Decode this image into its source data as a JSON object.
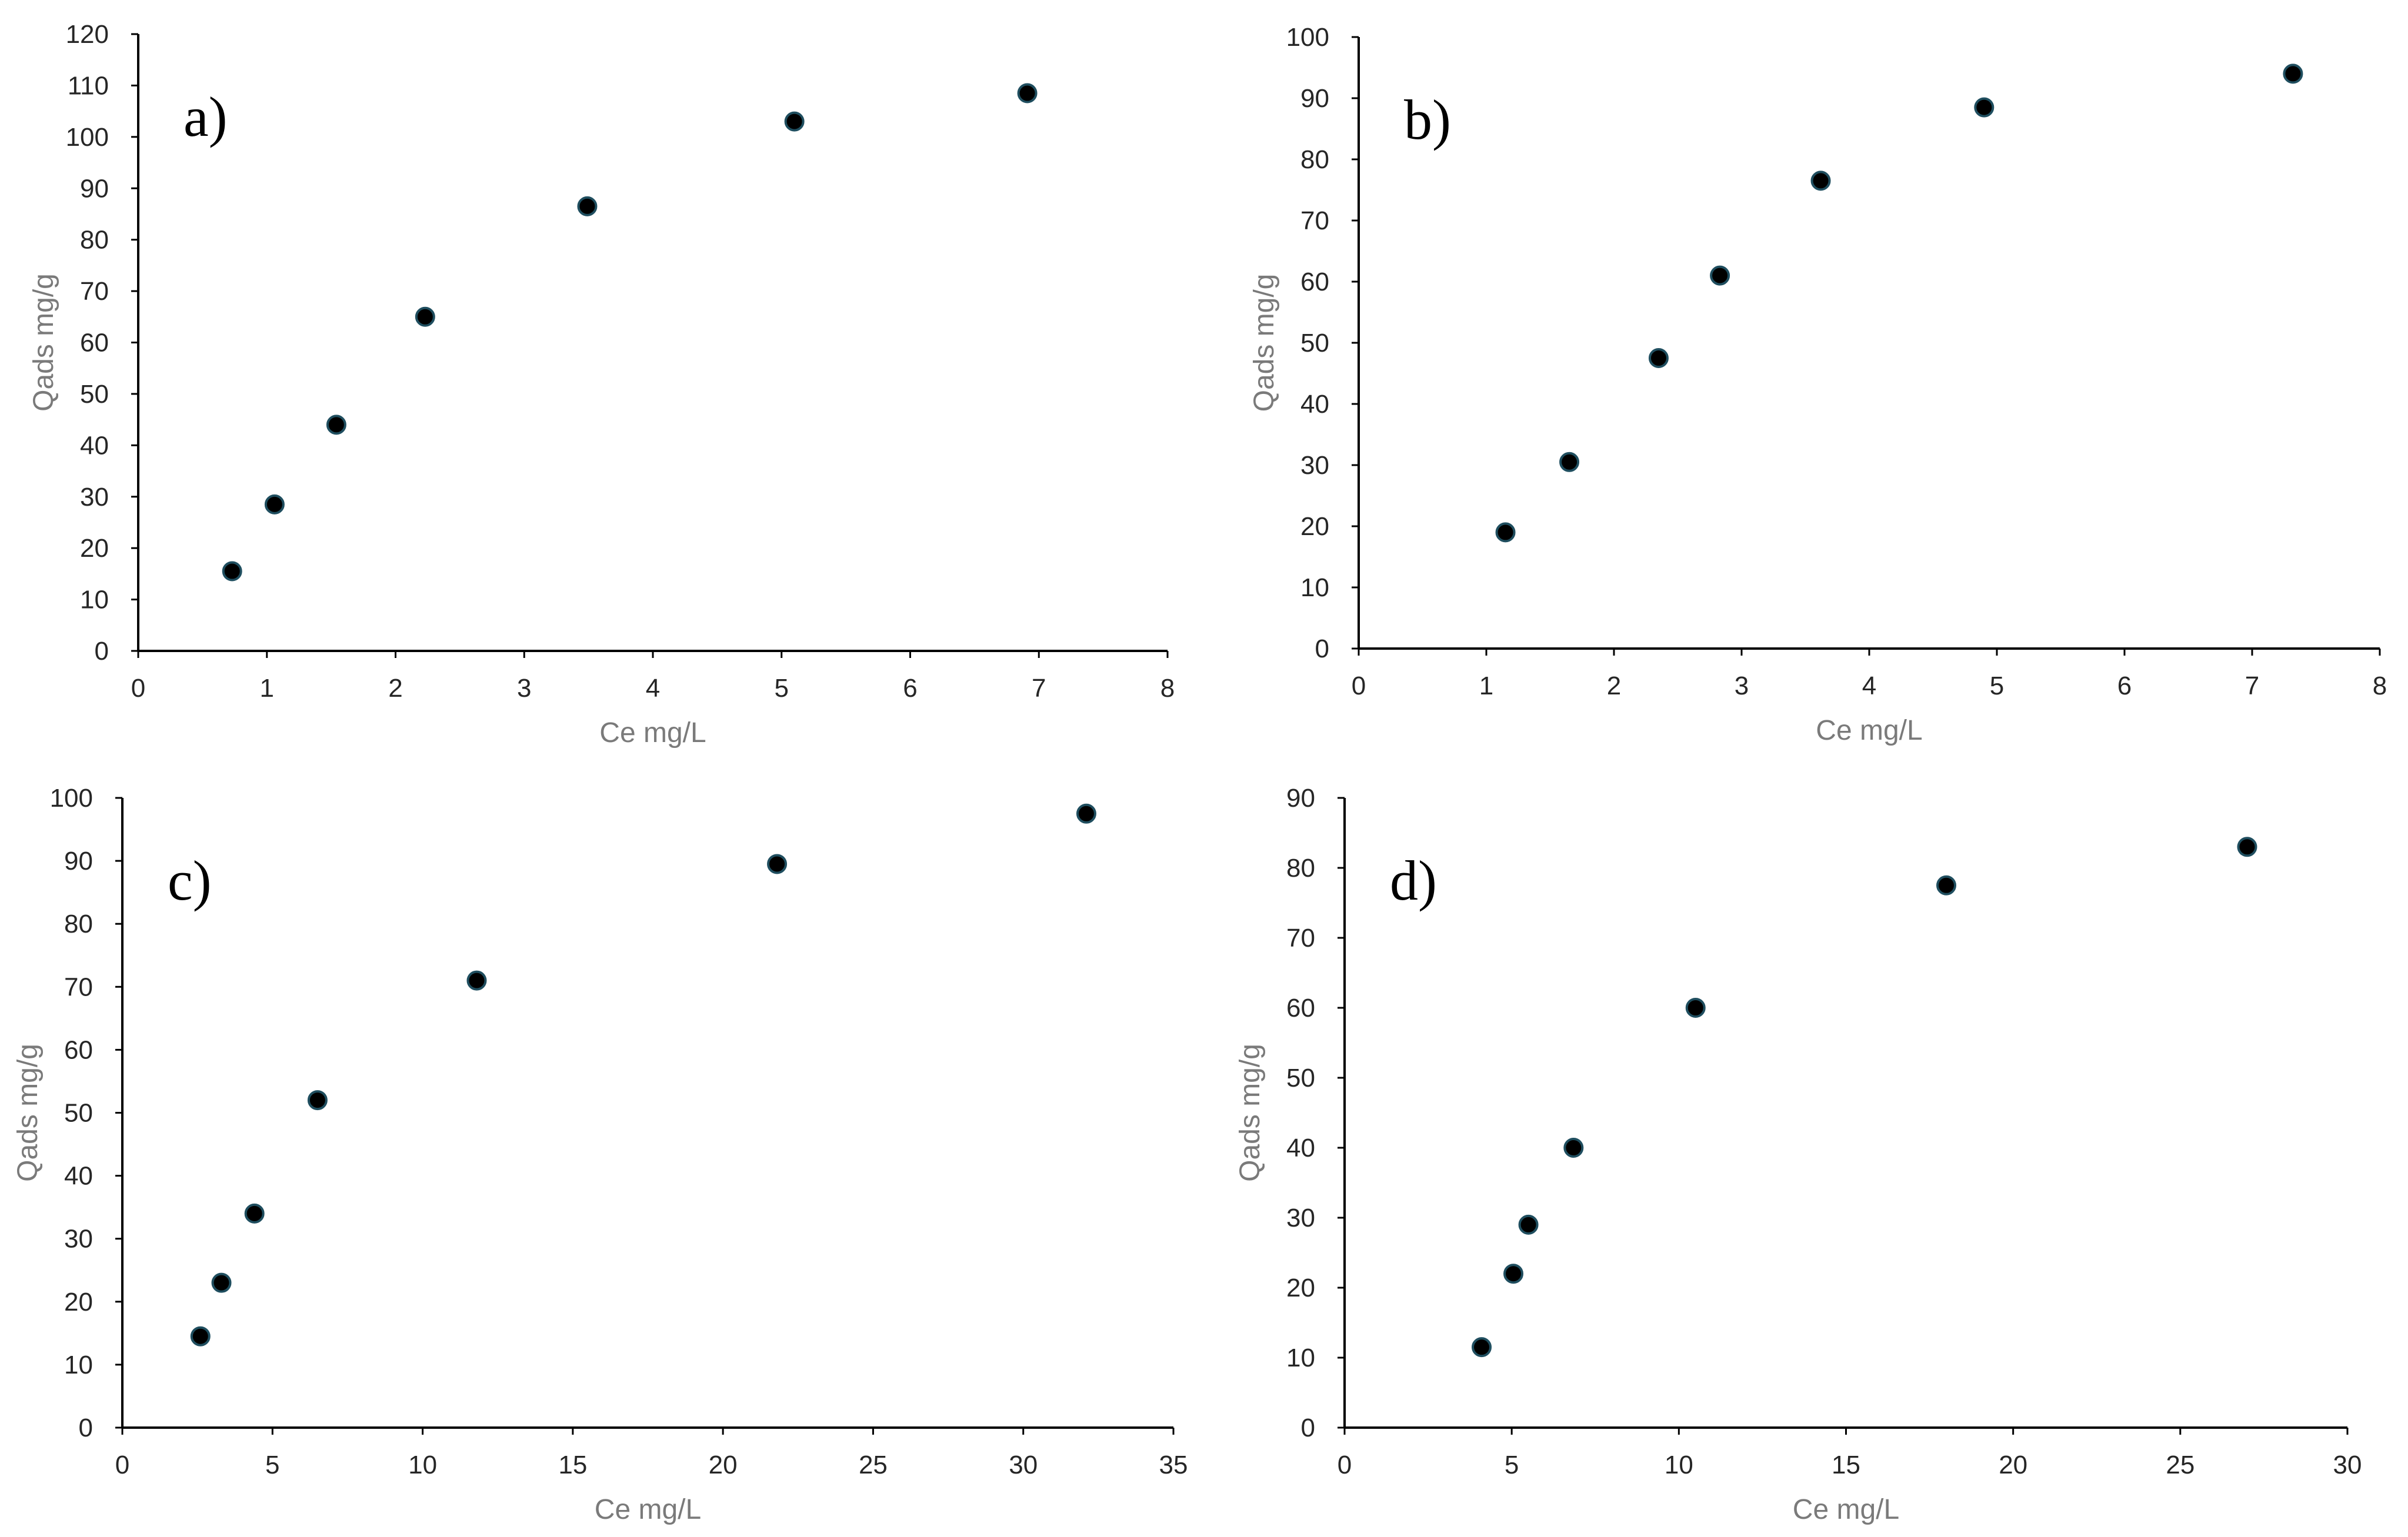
{
  "chart_data": [
    {
      "type": "scatter",
      "label": "a)",
      "xlabel": "Ce mg/L",
      "ylabel": "Qads mg/g",
      "xlim": [
        0,
        8
      ],
      "ylim": [
        0,
        120
      ],
      "xticks": [
        0,
        1,
        2,
        3,
        4,
        5,
        6,
        7,
        8
      ],
      "yticks": [
        0,
        10,
        20,
        30,
        40,
        50,
        60,
        70,
        80,
        90,
        100,
        110,
        120
      ],
      "grid": false,
      "series": [
        {
          "name": "a",
          "x": [
            0.73,
            1.06,
            1.54,
            2.23,
            3.49,
            5.1,
            6.91
          ],
          "y": [
            15.5,
            28.5,
            44.0,
            65.0,
            86.5,
            103.0,
            108.5
          ]
        }
      ]
    },
    {
      "type": "scatter",
      "label": "b)",
      "xlabel": "Ce mg/L",
      "ylabel": "Qads mg/g",
      "xlim": [
        0,
        8
      ],
      "ylim": [
        0,
        100
      ],
      "xticks": [
        0,
        1,
        2,
        3,
        4,
        5,
        6,
        7,
        8
      ],
      "yticks": [
        0,
        10,
        20,
        30,
        40,
        50,
        60,
        70,
        80,
        90,
        100
      ],
      "grid": false,
      "series": [
        {
          "name": "b",
          "x": [
            1.15,
            1.65,
            2.35,
            2.83,
            3.62,
            4.9,
            7.32
          ],
          "y": [
            19.0,
            30.5,
            47.5,
            61.0,
            76.5,
            88.5,
            94.0
          ]
        }
      ]
    },
    {
      "type": "scatter",
      "label": "c)",
      "xlabel": "Ce mg/L",
      "ylabel": "Qads mg/g",
      "xlim": [
        0,
        35
      ],
      "ylim": [
        0,
        100
      ],
      "xticks": [
        0,
        5,
        10,
        15,
        20,
        25,
        30,
        35
      ],
      "yticks": [
        0,
        10,
        20,
        30,
        40,
        50,
        60,
        70,
        80,
        90,
        100
      ],
      "grid": false,
      "series": [
        {
          "name": "c",
          "x": [
            2.6,
            3.3,
            4.4,
            6.5,
            11.8,
            21.8,
            32.1
          ],
          "y": [
            14.5,
            23.0,
            34.0,
            52.0,
            71.0,
            89.5,
            97.5
          ]
        }
      ]
    },
    {
      "type": "scatter",
      "label": "d)",
      "xlabel": "Ce mg/L",
      "ylabel": "Qads mg/g",
      "xlim": [
        0,
        30
      ],
      "ylim": [
        0,
        90
      ],
      "xticks": [
        0,
        5,
        10,
        15,
        20,
        25,
        30
      ],
      "yticks": [
        0,
        10,
        20,
        30,
        40,
        50,
        60,
        70,
        80,
        90
      ],
      "grid": false,
      "series": [
        {
          "name": "d",
          "x": [
            4.1,
            5.05,
            5.5,
            6.85,
            10.5,
            18.0,
            27.0
          ],
          "y": [
            11.5,
            22.0,
            29.0,
            40.0,
            60.0,
            77.5,
            83.0
          ]
        }
      ]
    }
  ]
}
